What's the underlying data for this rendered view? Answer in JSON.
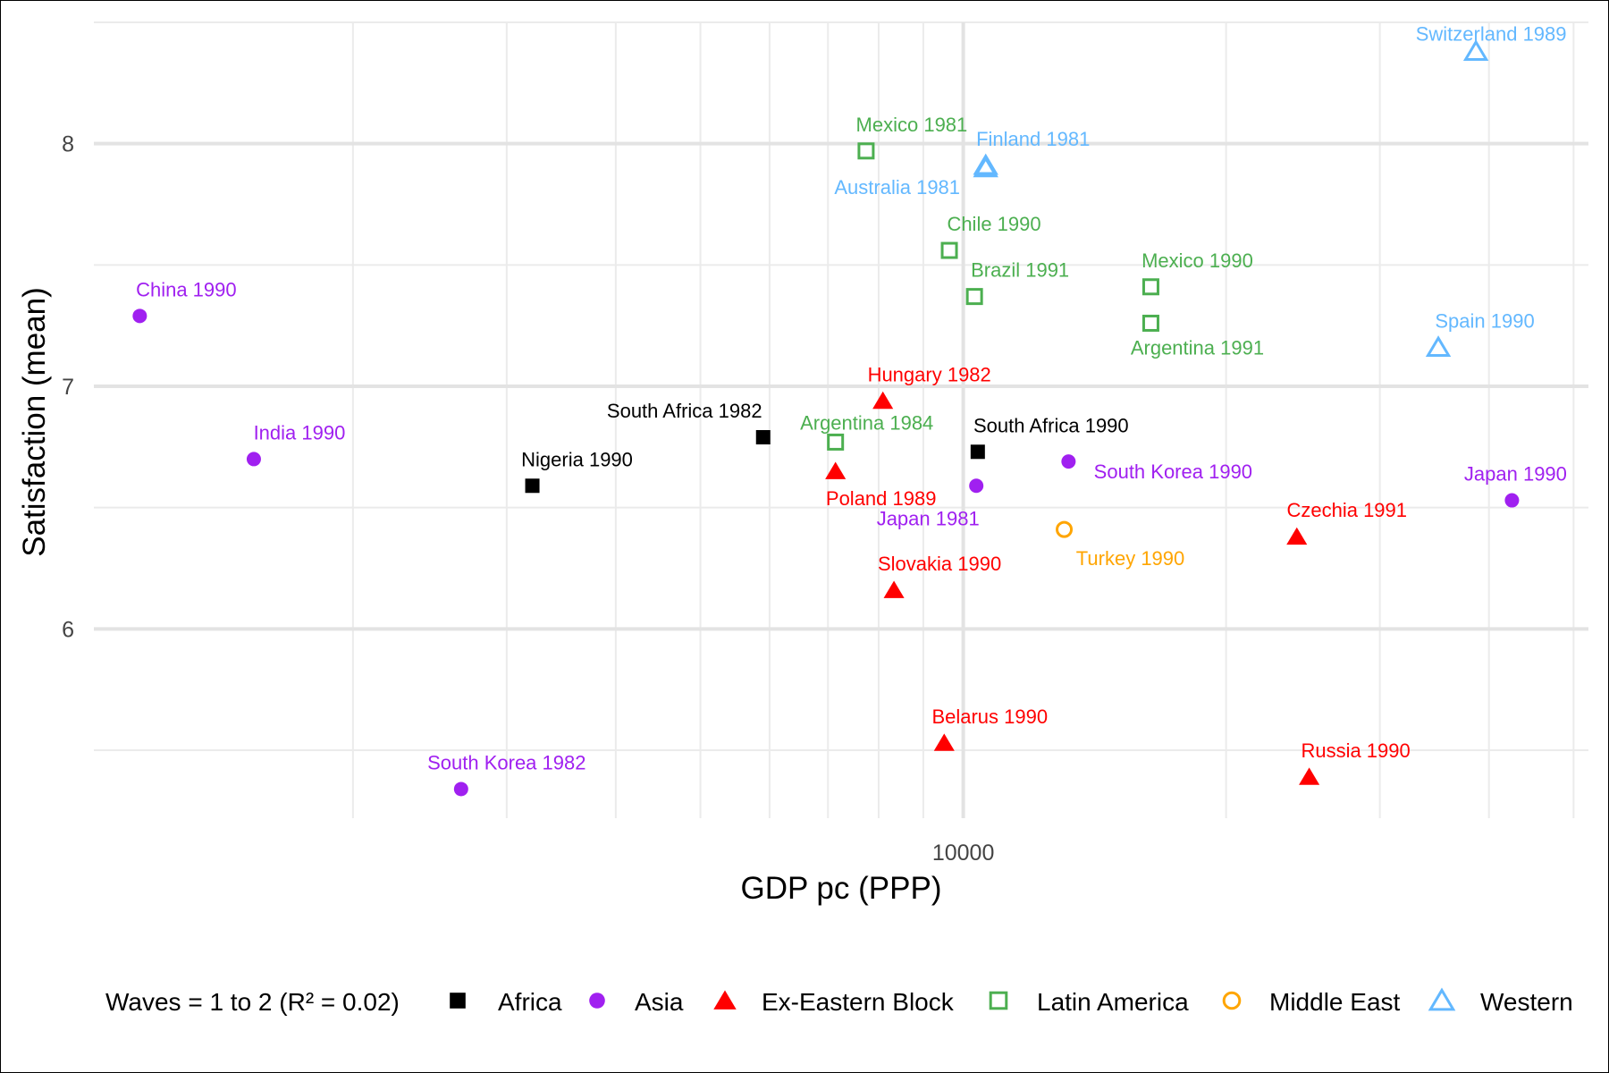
{
  "chart_data": {
    "type": "scatter",
    "x_scale": "log",
    "x_ticks": [
      10000
    ],
    "x_tick_labels": [
      "10000"
    ],
    "y_ticks": [
      6,
      7,
      8
    ],
    "y_tick_labels": [
      "6",
      "7",
      "8"
    ],
    "xlim": [
      1010,
      52000
    ],
    "ylim": [
      5.22,
      8.5
    ],
    "xlabel": "GDP pc (PPP)",
    "ylabel": "Satisfaction (mean)",
    "grid": true,
    "legend": {
      "position": "bottom",
      "title": "Waves = 1 to 2 (R² = 0.02)",
      "entries": [
        {
          "name": "Africa",
          "color": "#000000",
          "shape": "square-filled"
        },
        {
          "name": "Asia",
          "color": "#a020f0",
          "shape": "circle-filled"
        },
        {
          "name": "Ex-Eastern Block",
          "color": "#ff0000",
          "shape": "triangle-filled"
        },
        {
          "name": "Latin America",
          "color": "#4caf50",
          "shape": "square-open"
        },
        {
          "name": "Middle East",
          "color": "#ffa500",
          "shape": "circle-open"
        },
        {
          "name": "Western",
          "color": "#63b8ff",
          "shape": "triangle-open"
        }
      ]
    },
    "series": [
      {
        "name": "Africa",
        "points": [
          {
            "label": "Nigeria 1990",
            "x": 3210,
            "y": 6.59
          },
          {
            "label": "South Africa 1982",
            "x": 5900,
            "y": 6.79
          },
          {
            "label": "South Africa 1990",
            "x": 10390,
            "y": 6.73
          }
        ]
      },
      {
        "name": "Asia",
        "points": [
          {
            "label": "China 1990",
            "x": 1140,
            "y": 7.29
          },
          {
            "label": "India 1990",
            "x": 1540,
            "y": 6.7
          },
          {
            "label": "South Korea 1982",
            "x": 2660,
            "y": 5.34
          },
          {
            "label": "Japan 1981",
            "x": 10350,
            "y": 6.59
          },
          {
            "label": "South Korea 1990",
            "x": 13200,
            "y": 6.69
          },
          {
            "label": "Japan 1990",
            "x": 42500,
            "y": 6.53
          }
        ]
      },
      {
        "name": "Ex-Eastern Block",
        "points": [
          {
            "label": "Hungary 1982",
            "x": 8090,
            "y": 6.94
          },
          {
            "label": "Poland 1989",
            "x": 7140,
            "y": 6.65
          },
          {
            "label": "Slovakia 1990",
            "x": 8330,
            "y": 6.16
          },
          {
            "label": "Belarus 1990",
            "x": 9510,
            "y": 5.53
          },
          {
            "label": "Czechia 1991",
            "x": 24100,
            "y": 6.38
          },
          {
            "label": "Russia 1990",
            "x": 24900,
            "y": 5.39
          }
        ]
      },
      {
        "name": "Latin America",
        "points": [
          {
            "label": "Mexico 1981",
            "x": 7740,
            "y": 7.97
          },
          {
            "label": "Argentina 1984",
            "x": 7140,
            "y": 6.77
          },
          {
            "label": "Chile 1990",
            "x": 9640,
            "y": 7.56
          },
          {
            "label": "Brazil 1991",
            "x": 10300,
            "y": 7.37
          },
          {
            "label": "Mexico 1990",
            "x": 16400,
            "y": 7.41
          },
          {
            "label": "Argentina 1991",
            "x": 16400,
            "y": 7.26
          }
        ]
      },
      {
        "name": "Middle East",
        "points": [
          {
            "label": "Turkey 1990",
            "x": 13050,
            "y": 6.41
          }
        ]
      },
      {
        "name": "Western",
        "points": [
          {
            "label": "Finland 1981",
            "x": 10610,
            "y": 7.91
          },
          {
            "label": "Australia 1981",
            "x": 10610,
            "y": 7.9
          },
          {
            "label": "Switzerland 1989",
            "x": 38650,
            "y": 8.38
          },
          {
            "label": "Spain 1990",
            "x": 35000,
            "y": 7.16
          }
        ]
      }
    ]
  }
}
